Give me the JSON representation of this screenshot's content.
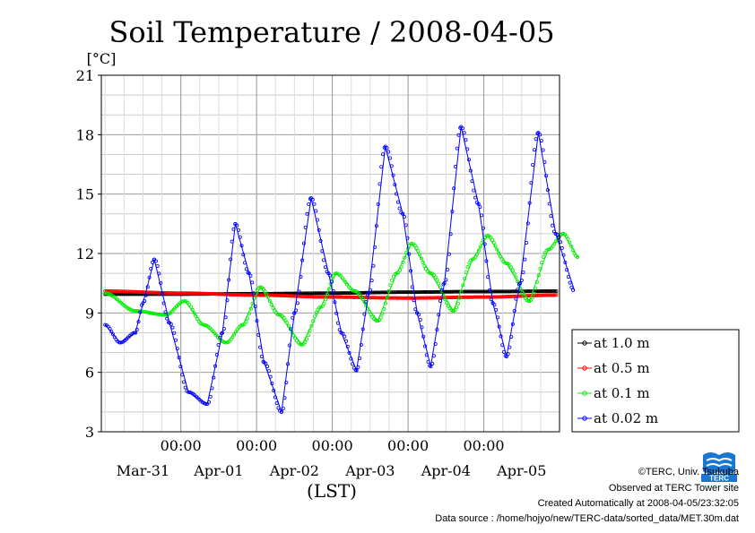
{
  "chart_data": {
    "type": "line",
    "title": "Soil Temperature / 2008-04-05",
    "ylabel": "[°C]",
    "xlabel": "(LST)",
    "ylim": [
      3,
      21
    ],
    "yticks": [
      3,
      6,
      9,
      12,
      15,
      18,
      21
    ],
    "xlim": [
      -0.5,
      5.5
    ],
    "x_unit": "days from 2008-03-31 00:00 LST",
    "xtick_labels": [
      "00:00",
      "00:00",
      "00:00",
      "00:00",
      "00:00"
    ],
    "xtick_positions": [
      0,
      1,
      2,
      3,
      4
    ],
    "date_labels": [
      "Mar-31",
      "Apr-01",
      "Apr-02",
      "Apr-03",
      "Apr-04",
      "Apr-05"
    ],
    "date_positions": [
      -0.5,
      0.5,
      1.5,
      2.5,
      3.5,
      4.5
    ],
    "grid": true,
    "legend_position": "right",
    "series": [
      {
        "name": "at 1.0 m",
        "color": "#000000",
        "points": [
          [
            -1.0,
            9.95
          ],
          [
            0.0,
            9.95
          ],
          [
            1.0,
            9.97
          ],
          [
            2.0,
            10.0
          ],
          [
            3.0,
            10.05
          ],
          [
            4.0,
            10.08
          ],
          [
            4.96,
            10.1
          ]
        ]
      },
      {
        "name": "at 0.5 m",
        "color": "#ff0000",
        "points": [
          [
            -1.0,
            10.1
          ],
          [
            0.0,
            10.0
          ],
          [
            1.0,
            9.9
          ],
          [
            2.0,
            9.8
          ],
          [
            3.0,
            9.75
          ],
          [
            4.0,
            9.8
          ],
          [
            4.96,
            9.9
          ]
        ]
      },
      {
        "name": "at 0.1 m",
        "color": "#00ee00",
        "points": [
          [
            -1.0,
            10.0
          ],
          [
            -0.6,
            9.1
          ],
          [
            -0.2,
            8.9
          ],
          [
            0.05,
            9.6
          ],
          [
            0.3,
            8.4
          ],
          [
            0.6,
            7.5
          ],
          [
            0.82,
            8.4
          ],
          [
            1.05,
            10.3
          ],
          [
            1.3,
            8.9
          ],
          [
            1.6,
            7.4
          ],
          [
            1.85,
            9.3
          ],
          [
            2.05,
            11.0
          ],
          [
            2.3,
            10.1
          ],
          [
            2.6,
            8.6
          ],
          [
            2.85,
            11.0
          ],
          [
            3.05,
            12.5
          ],
          [
            3.3,
            11.0
          ],
          [
            3.6,
            9.1
          ],
          [
            3.85,
            11.7
          ],
          [
            4.05,
            12.9
          ],
          [
            4.3,
            11.5
          ],
          [
            4.6,
            9.6
          ],
          [
            4.85,
            12.2
          ],
          [
            5.05,
            13.0
          ],
          [
            5.25,
            11.8
          ]
        ]
      },
      {
        "name": "at 0.02 m",
        "color": "#0000ff",
        "points": [
          [
            -1.0,
            8.4
          ],
          [
            -0.8,
            7.5
          ],
          [
            -0.6,
            8.0
          ],
          [
            -0.5,
            9.5
          ],
          [
            -0.35,
            11.7
          ],
          [
            -0.15,
            8.5
          ],
          [
            0.1,
            5.0
          ],
          [
            0.35,
            4.4
          ],
          [
            0.55,
            8.0
          ],
          [
            0.72,
            13.5
          ],
          [
            0.9,
            11.0
          ],
          [
            1.1,
            6.5
          ],
          [
            1.33,
            4.0
          ],
          [
            1.5,
            9.0
          ],
          [
            1.72,
            14.8
          ],
          [
            1.95,
            11.0
          ],
          [
            2.12,
            8.0
          ],
          [
            2.32,
            6.1
          ],
          [
            2.48,
            10.0
          ],
          [
            2.7,
            17.4
          ],
          [
            2.93,
            14.0
          ],
          [
            3.12,
            9.0
          ],
          [
            3.3,
            6.3
          ],
          [
            3.48,
            10.5
          ],
          [
            3.7,
            18.4
          ],
          [
            3.93,
            14.5
          ],
          [
            4.12,
            9.5
          ],
          [
            4.3,
            6.8
          ],
          [
            4.48,
            10.5
          ],
          [
            4.72,
            18.1
          ],
          [
            4.95,
            13.0
          ],
          [
            5.2,
            10.1
          ]
        ]
      }
    ]
  },
  "credits": {
    "copyright": "©TERC, Univ. Tsukuba",
    "observed": "Observed at TERC Tower site",
    "created": "Created Automatically at 2008-04-05/23:32:05",
    "source": "Data source : /home/hojyo/new/TERC-data/sorted_data/MET.30m.dat",
    "logo_text": "TERC"
  }
}
